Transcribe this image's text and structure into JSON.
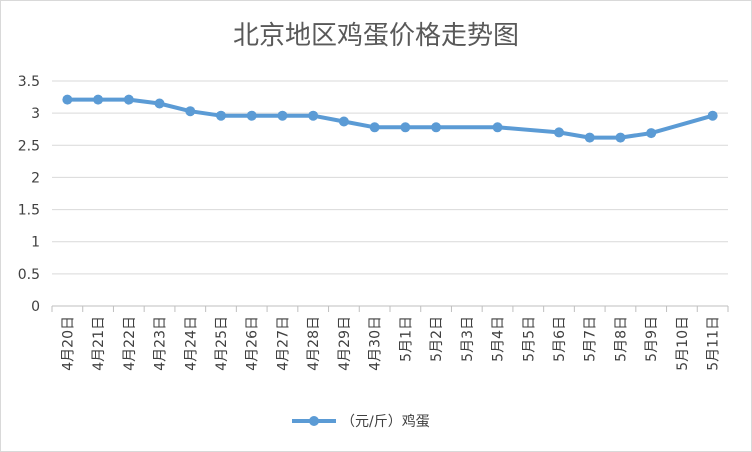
{
  "chart_data": {
    "type": "line",
    "title": "北京地区鸡蛋价格走势图",
    "categories": [
      "4月20日",
      "4月21日",
      "4月22日",
      "4月23日",
      "4月24日",
      "4月25日",
      "4月26日",
      "4月27日",
      "4月28日",
      "4月29日",
      "4月30日",
      "5月1日",
      "5月2日",
      "5月3日",
      "5月4日",
      "5月5日",
      "5月6日",
      "5月7日",
      "5月8日",
      "5月9日",
      "5月10日",
      "5月11日"
    ],
    "series": [
      {
        "name": "（元/斤）鸡蛋",
        "values": [
          3.21,
          3.21,
          3.21,
          3.15,
          3.03,
          2.96,
          2.96,
          2.96,
          2.96,
          2.87,
          2.78,
          2.78,
          2.78,
          null,
          2.78,
          null,
          2.7,
          2.62,
          2.62,
          2.69,
          null,
          2.96
        ],
        "color": "#5B9BD5"
      }
    ],
    "yticks": [
      "0",
      "0.5",
      "1",
      "1.5",
      "2",
      "2.5",
      "3",
      "3.5"
    ],
    "ylim": [
      0,
      3.5
    ],
    "grid": true,
    "legend_position": "bottom"
  }
}
